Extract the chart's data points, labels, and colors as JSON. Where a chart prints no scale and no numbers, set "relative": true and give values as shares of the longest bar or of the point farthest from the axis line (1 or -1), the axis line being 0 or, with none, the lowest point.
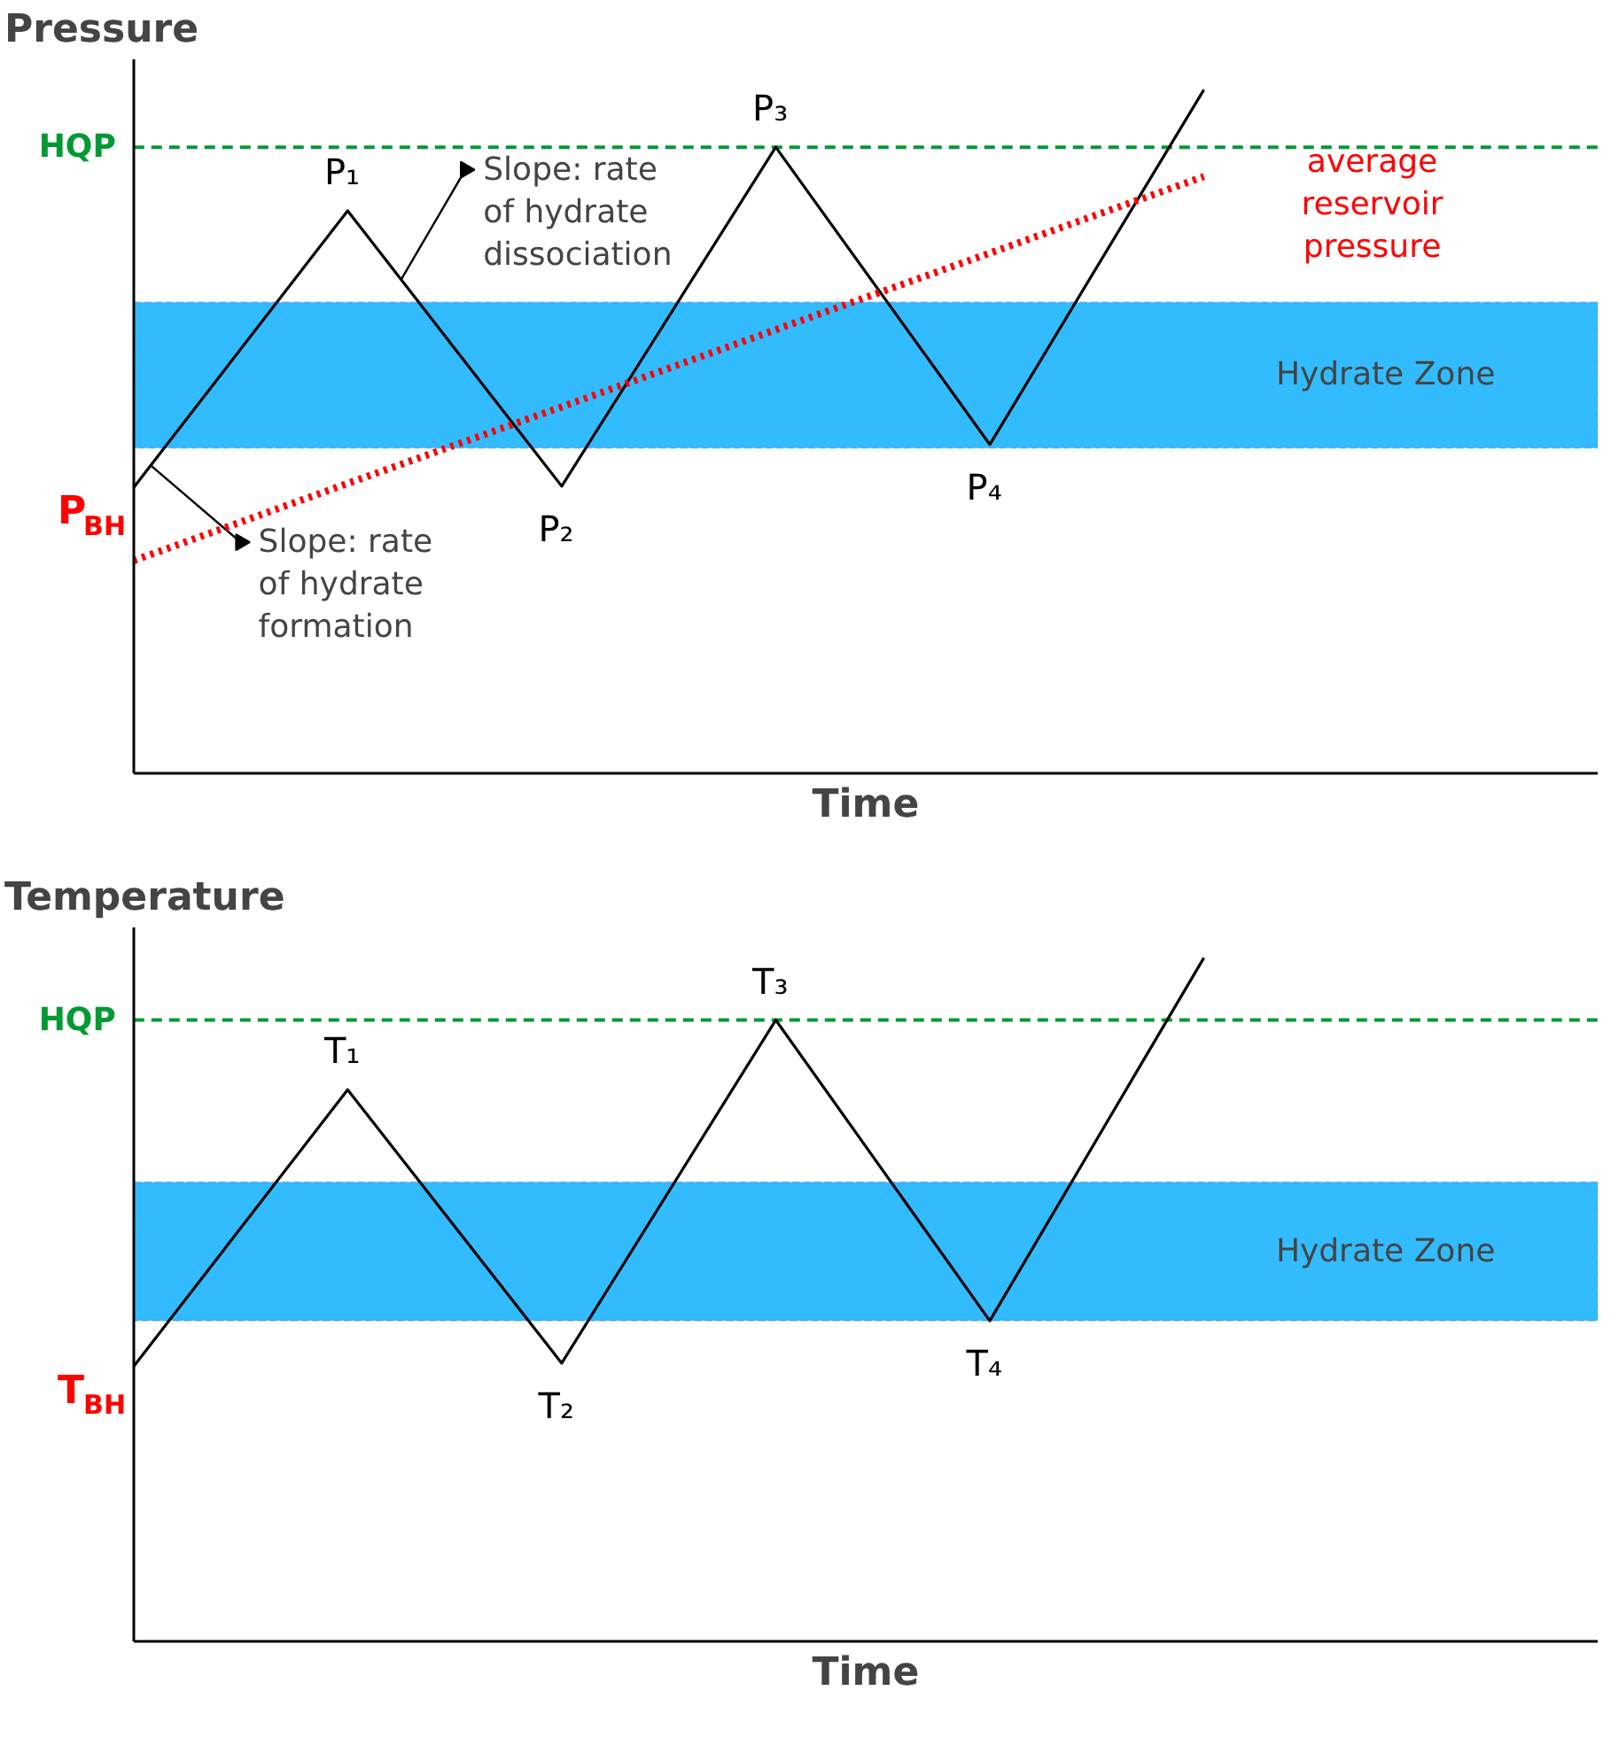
{
  "chart_data": [
    {
      "type": "line",
      "ylabel": "Pressure",
      "xlabel": "Time",
      "relative": true,
      "categories": [
        null,
        null,
        null,
        null,
        null,
        null
      ],
      "series": [
        {
          "color": "#000000",
          "values": [
            0.418,
            0.823,
            0.42,
            0.916,
            0.481,
            1.0
          ]
        },
        {
          "name": "average reservoir pressure",
          "color": "#ff0000",
          "line_style": "dotted",
          "values": [
            0.311,
            0.424,
            0.536,
            0.649,
            0.761,
            0.873
          ]
        }
      ],
      "bands": [
        {
          "axis": "y",
          "from": 0.476,
          "to": 0.689,
          "label": "Hydrate Zone",
          "color": "#33bbff"
        }
      ],
      "ref_lines": [
        {
          "axis": "y",
          "value": 0.916,
          "label": "HQP",
          "color": "#009933",
          "line_style": "dashed"
        }
      ],
      "annotations": [
        "P$_{BH}$",
        {
          "text": "P₁",
          "y": 0.823
        },
        {
          "text": "P₂",
          "y": 0.42
        },
        {
          "text": "P₃",
          "y": 0.916
        },
        {
          "text": "P₄",
          "y": 0.481
        },
        "Slope: rate of hydrate dissociation",
        "Slope: rate of hydrate formation"
      ]
    },
    {
      "type": "line",
      "ylabel": "Temperature",
      "xlabel": "Time",
      "relative": true,
      "categories": [
        null,
        null,
        null,
        null,
        null,
        null
      ],
      "series": [
        {
          "color": "#000000",
          "values": [
            0.402,
            0.807,
            0.407,
            0.909,
            0.469,
            1.0
          ]
        }
      ],
      "bands": [
        {
          "axis": "y",
          "from": 0.469,
          "to": 0.672,
          "label": "Hydrate Zone",
          "color": "#33bbff"
        }
      ],
      "ref_lines": [
        {
          "axis": "y",
          "value": 0.909,
          "label": "HQP",
          "color": "#009933",
          "line_style": "dashed"
        }
      ],
      "annotations": [
        "T$_{BH}$",
        {
          "text": "T₁",
          "y": 0.807
        },
        {
          "text": "T₂",
          "y": 0.407
        },
        {
          "text": "T₃",
          "y": 0.909
        },
        {
          "text": "T₄",
          "y": 0.469
        }
      ]
    }
  ]
}
